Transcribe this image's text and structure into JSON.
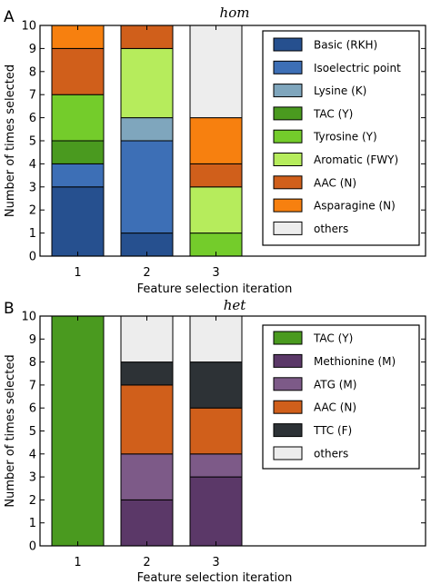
{
  "chart_data": [
    {
      "panel": "A",
      "title": "hom",
      "type": "bar",
      "stacked": true,
      "xlabel": "Feature selection iteration",
      "ylabel": "Number of times selected",
      "ylim": [
        0,
        10
      ],
      "yticks": [
        "0",
        "1",
        "2",
        "3",
        "4",
        "5",
        "6",
        "7",
        "8",
        "9",
        "10"
      ],
      "categories": [
        "1",
        "2",
        "3"
      ],
      "legend_position": "right",
      "series": [
        {
          "name": "Basic (RKH)",
          "color": "#26508f",
          "values": [
            3,
            1,
            0
          ]
        },
        {
          "name": "Isoelectric point",
          "color": "#3d6fb6",
          "values": [
            1,
            4,
            0
          ]
        },
        {
          "name": "Lysine (K)",
          "color": "#7fa6bd",
          "values": [
            0,
            1,
            0
          ]
        },
        {
          "name": "TAC (Y)",
          "color": "#4a9a1f",
          "values": [
            1,
            0,
            0
          ]
        },
        {
          "name": "Tyrosine (Y)",
          "color": "#74cc2b",
          "values": [
            2,
            0,
            1
          ]
        },
        {
          "name": "Aromatic (FWY)",
          "color": "#b6ec5c",
          "values": [
            0,
            3,
            2
          ]
        },
        {
          "name": "AAC (N)",
          "color": "#d05f1b",
          "values": [
            2,
            1,
            1
          ]
        },
        {
          "name": "Asparagine (N)",
          "color": "#f7800f",
          "values": [
            1,
            0,
            2
          ]
        },
        {
          "name": "others",
          "color": "#ededed",
          "values": [
            0,
            0,
            4
          ]
        }
      ]
    },
    {
      "panel": "B",
      "title": "het",
      "type": "bar",
      "stacked": true,
      "xlabel": "Feature selection iteration",
      "ylabel": "Number of times selected",
      "ylim": [
        0,
        10
      ],
      "yticks": [
        "0",
        "1",
        "2",
        "3",
        "4",
        "5",
        "6",
        "7",
        "8",
        "9",
        "10"
      ],
      "categories": [
        "1",
        "2",
        "3"
      ],
      "legend_position": "right",
      "series": [
        {
          "name": "TAC (Y)",
          "color": "#4a9a1f",
          "values": [
            10,
            0,
            0
          ]
        },
        {
          "name": "Methionine (M)",
          "color": "#5b3868",
          "values": [
            0,
            2,
            3
          ]
        },
        {
          "name": "ATG (M)",
          "color": "#7d5a88",
          "values": [
            0,
            2,
            1
          ]
        },
        {
          "name": "AAC (N)",
          "color": "#d05f1b",
          "values": [
            0,
            3,
            2
          ]
        },
        {
          "name": "TTC (F)",
          "color": "#2d3236",
          "values": [
            0,
            1,
            2
          ]
        },
        {
          "name": "others",
          "color": "#ededed",
          "values": [
            0,
            2,
            2
          ]
        }
      ]
    }
  ]
}
